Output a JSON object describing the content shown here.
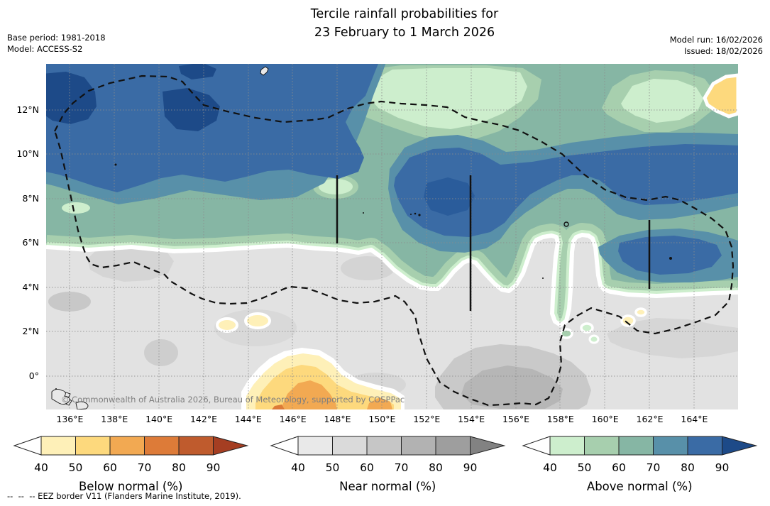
{
  "title": {
    "line1": "Tercile rainfall probabilities for",
    "line2": "23 February to 1 March 2026"
  },
  "annotations": {
    "base_period": "Base period: 1981-2018",
    "model": "Model: ACCESS-S2",
    "model_run": "Model run: 16/02/2026",
    "issued": "Issued: 18/02/2026",
    "copyright": "© Commonwealth of Australia 2026, Bureau of Meteorology, supported by COSPPac",
    "eez_dash_sample": "--  --  --",
    "eez_note": " EEZ border V11 (Flanders Marine Institute, 2019)."
  },
  "map": {
    "x_ticks": [
      "136°E",
      "138°E",
      "140°E",
      "142°E",
      "144°E",
      "146°E",
      "148°E",
      "150°E",
      "152°E",
      "154°E",
      "156°E",
      "158°E",
      "160°E",
      "162°E",
      "164°E"
    ],
    "y_ticks": [
      "12°N",
      "10°N",
      "8°N",
      "6°N",
      "4°N",
      "2°N",
      "0°"
    ]
  },
  "colorbars": [
    {
      "label": "Below normal (%)",
      "ticks": [
        "40",
        "50",
        "60",
        "70",
        "80",
        "90"
      ],
      "segment_colors": [
        "#fef0b8",
        "#fdd97d",
        "#f2a952",
        "#dd7b38",
        "#bf5b2d"
      ],
      "arrow_color": "#a53e22"
    },
    {
      "label": "Near normal (%)",
      "ticks": [
        "40",
        "50",
        "60",
        "70",
        "80",
        "90"
      ],
      "segment_colors": [
        "#e9e9e9",
        "#dadada",
        "#c6c6c6",
        "#b2b2b2",
        "#9e9e9e"
      ],
      "arrow_color": "#828282"
    },
    {
      "label": "Above normal (%)",
      "ticks": [
        "40",
        "50",
        "60",
        "70",
        "80",
        "90"
      ],
      "segment_colors": [
        "#cdeecd",
        "#a7cfae",
        "#86b6a4",
        "#5890a9",
        "#3a6ba5"
      ],
      "arrow_color": "#1d4a88"
    }
  ],
  "chart_data": {
    "type": "heatmap",
    "subtype": "filled-contour probability map",
    "title": "Tercile rainfall probabilities for 23 February to 1 March 2026",
    "x_range_deg_east": [
      135,
      166
    ],
    "y_range_deg_north": [
      -1.5,
      14
    ],
    "x_tick_values": [
      136,
      138,
      140,
      142,
      144,
      146,
      148,
      150,
      152,
      154,
      156,
      158,
      160,
      162,
      164
    ],
    "y_tick_values": [
      12,
      10,
      8,
      6,
      4,
      2,
      0
    ],
    "legend_bins_percent": [
      40,
      50,
      60,
      70,
      80,
      90
    ],
    "categories": [
      "Below normal",
      "Near normal",
      "Above normal"
    ],
    "summary": [
      {
        "region": "north of ~6°N across 135-166°E",
        "category": "Above normal",
        "probability_percent": "60-90+"
      },
      {
        "region": "northwest corner 135-139°E, 11-14°N",
        "category": "Above normal",
        "probability_percent": "90+"
      },
      {
        "region": "152-155°E near 8°N and 160-164°E near 5-8°N",
        "category": "Above normal",
        "probability_percent": "80-90"
      },
      {
        "region": "148-164°E, 10-14°N",
        "category": "Above normal",
        "probability_percent": "40-50"
      },
      {
        "region": "south of ~5°N",
        "category": "Near normal",
        "probability_percent": "40-70"
      },
      {
        "region": "142-150°E near and south of 1°N",
        "category": "Below normal",
        "probability_percent": "50-70"
      },
      {
        "region": "164-166°E, 12-13.5°N",
        "category": "Below normal",
        "probability_percent": "50-60"
      }
    ]
  }
}
